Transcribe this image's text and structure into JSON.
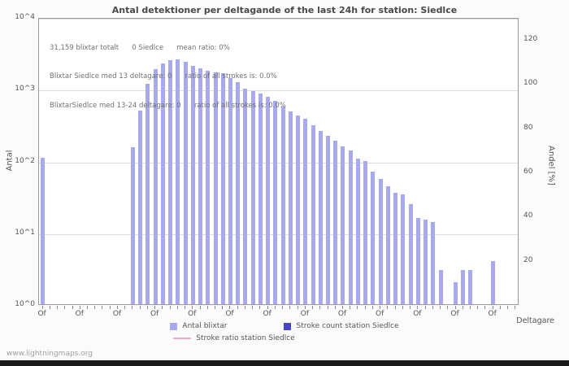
{
  "page": {
    "watermark": "www.lightningmaps.org"
  },
  "chart_data": {
    "type": "bar",
    "title": "Antal detektioner per deltagande of the last 24h for station: Siedlce",
    "xlabel": "Deltagare",
    "ylabel_left": "Antal",
    "ylabel_right": "Andel [%]",
    "annotations": [
      "31,159 blixtar totalt      0 Siedlce      mean ratio: 0%",
      "Blixtar Siedlce med 13 deltagare: 0      ratio of all strokes is: 0.0%",
      "BlixtarSiedlce med 13-24 deltagare: 0      ratio of all strokes is: 0.0%"
    ],
    "y_left_ticks": [
      "10^0",
      "10^1",
      "10^2",
      "10^3",
      "10^4"
    ],
    "y_left_log_max": 4,
    "y_right_ticks": [
      20,
      40,
      60,
      80,
      100,
      120
    ],
    "y_right_max": 130,
    "x_tick_label": "Of",
    "x_tick_every": 5,
    "grid": true,
    "legend_position": "bottom",
    "values": [
      110,
      0,
      0,
      0,
      0,
      0,
      0,
      0,
      0,
      0,
      0,
      0,
      155,
      500,
      1180,
      1870,
      2250,
      2500,
      2570,
      2400,
      2090,
      1950,
      1780,
      1700,
      1660,
      1410,
      1230,
      1000,
      930,
      850,
      780,
      680,
      560,
      490,
      430,
      380,
      310,
      260,
      220,
      190,
      160,
      140,
      107,
      100,
      70,
      55,
      44,
      36,
      34,
      25,
      16,
      15,
      14,
      3,
      0,
      2,
      3,
      3,
      0,
      0,
      4,
      0,
      0,
      0
    ],
    "bar_color": "#a9aaee",
    "legend": [
      {
        "label": "Antal blixtar",
        "color": "#a9aaee",
        "type": "box"
      },
      {
        "label": "Stroke count station Siedlce",
        "color": "#4646c8",
        "type": "box"
      },
      {
        "label": "Stroke ratio station Siedlce",
        "color": "#f9a8d0",
        "type": "line"
      }
    ]
  }
}
